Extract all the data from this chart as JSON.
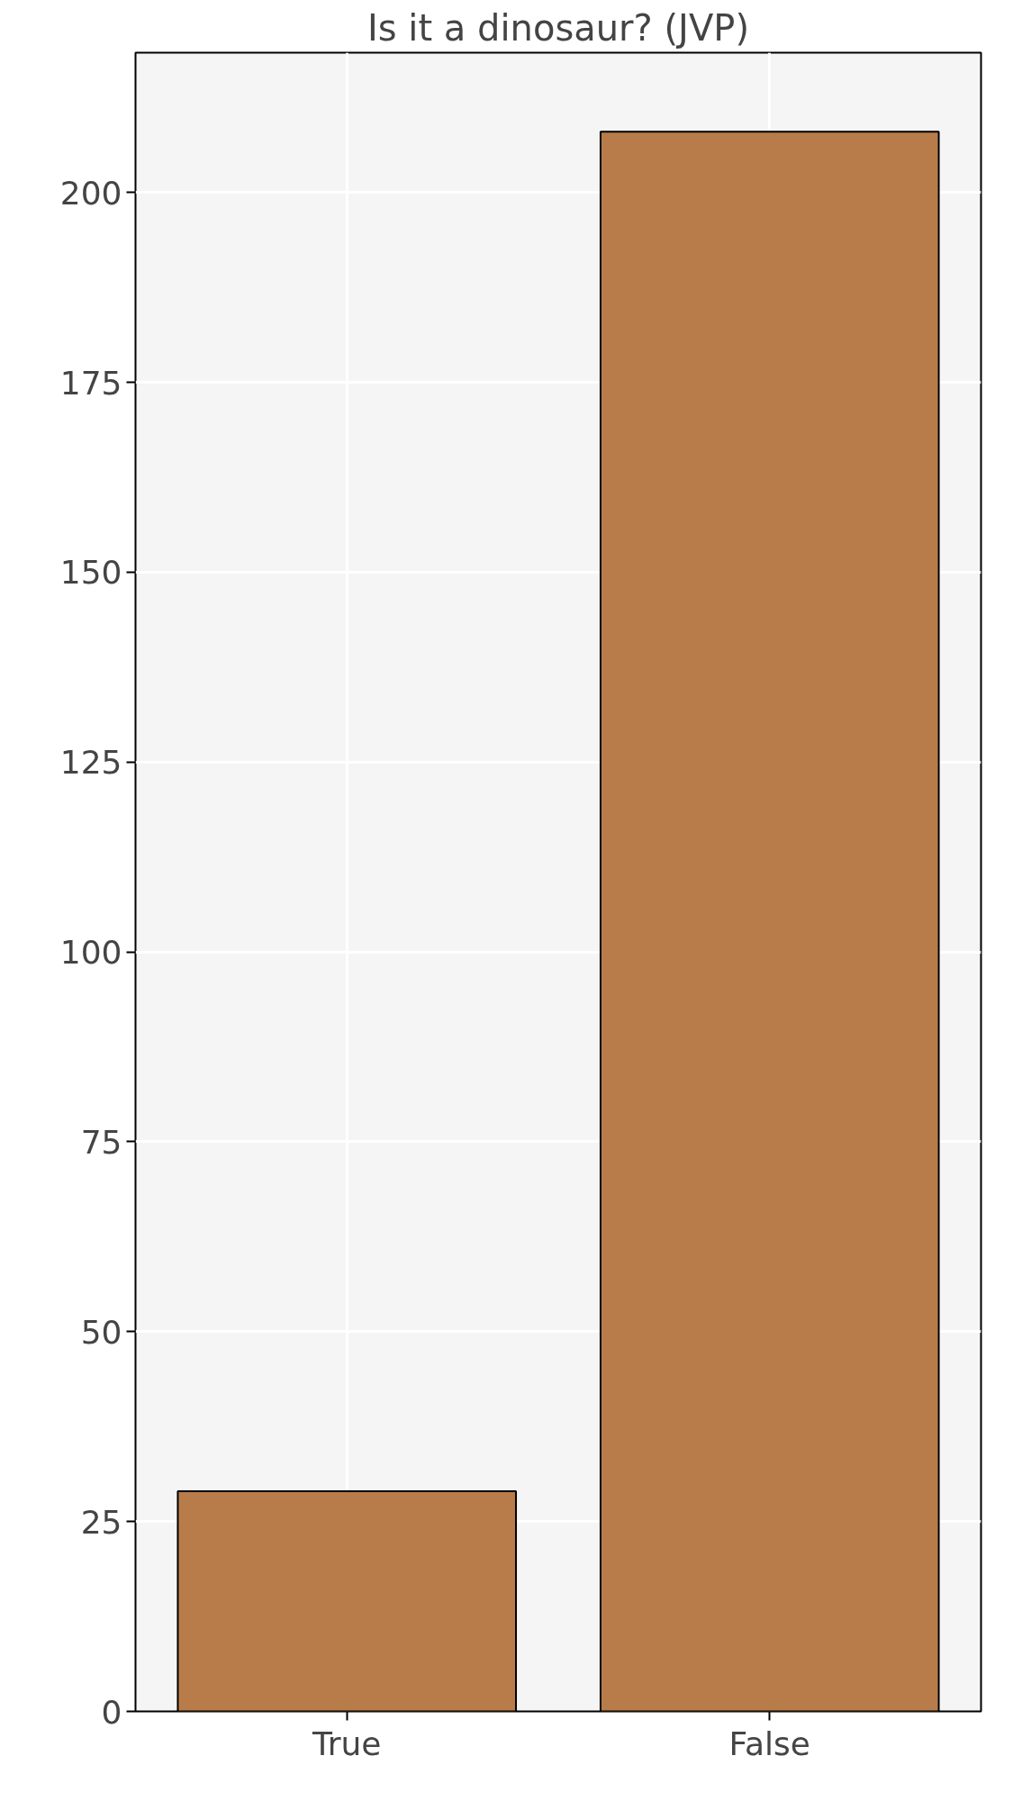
{
  "chart_data": {
    "type": "bar",
    "title": "Is it a dinosaur? (JVP)",
    "categories": [
      "True",
      "False"
    ],
    "values": [
      29,
      208
    ],
    "color": "#b87c4a",
    "ylim": [
      0,
      218.4
    ],
    "yticks": [
      0,
      25,
      50,
      75,
      100,
      125,
      150,
      175,
      200
    ],
    "grid": true
  }
}
